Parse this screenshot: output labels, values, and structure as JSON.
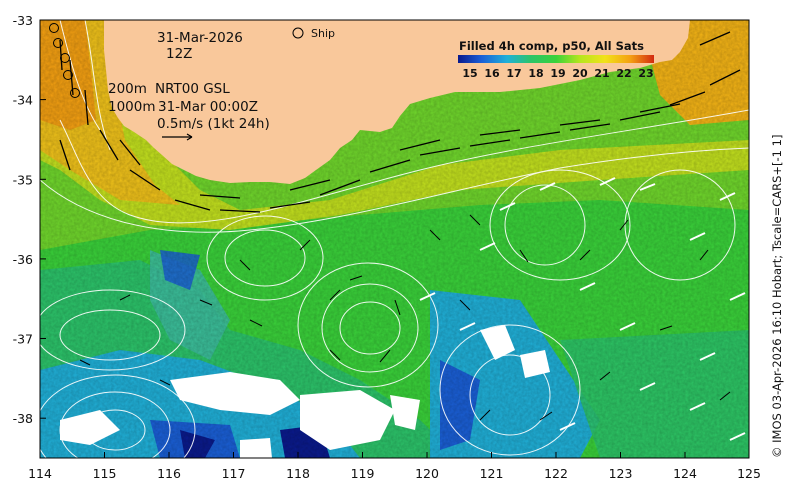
{
  "map": {
    "lon_range": [
      114,
      125
    ],
    "lat_range": [
      -38.5,
      -33
    ],
    "x_ticks": [
      "114",
      "115",
      "116",
      "117",
      "118",
      "119",
      "120",
      "121",
      "122",
      "123",
      "124",
      "125"
    ],
    "y_ticks": [
      "-33",
      "-34",
      "-35",
      "-36",
      "-37",
      "-38"
    ],
    "colors": {
      "land": "#f9c89b",
      "sst_15": "#0a1a8c",
      "sst_16": "#1a5fd6",
      "sst_17": "#20b0d8",
      "sst_18": "#2cc46a",
      "sst_19": "#3ad23a",
      "sst_20": "#b4e61e",
      "sst_21": "#f2e21a",
      "sst_22": "#f4a012",
      "sst_23": "#d22a10"
    }
  },
  "annotations": {
    "date": "31-Mar-2026",
    "hour": "12Z",
    "depth_200": "200m",
    "depth_1000": "1000m",
    "product": "NRT00 GSL",
    "product_time": "31-Mar 00:00Z",
    "scale_label": "0.5m/s (1kt 24h)",
    "ship_label": "Ship"
  },
  "colorbar": {
    "title": "Filled 4h comp, p50, All Sats",
    "ticks": [
      "15",
      "16",
      "17",
      "18",
      "19",
      "20",
      "21",
      "22",
      "23"
    ]
  },
  "credit": "© IMOS 03-Apr-2026 16:10 Hobart; Tscale=CARS+[-1 1]"
}
